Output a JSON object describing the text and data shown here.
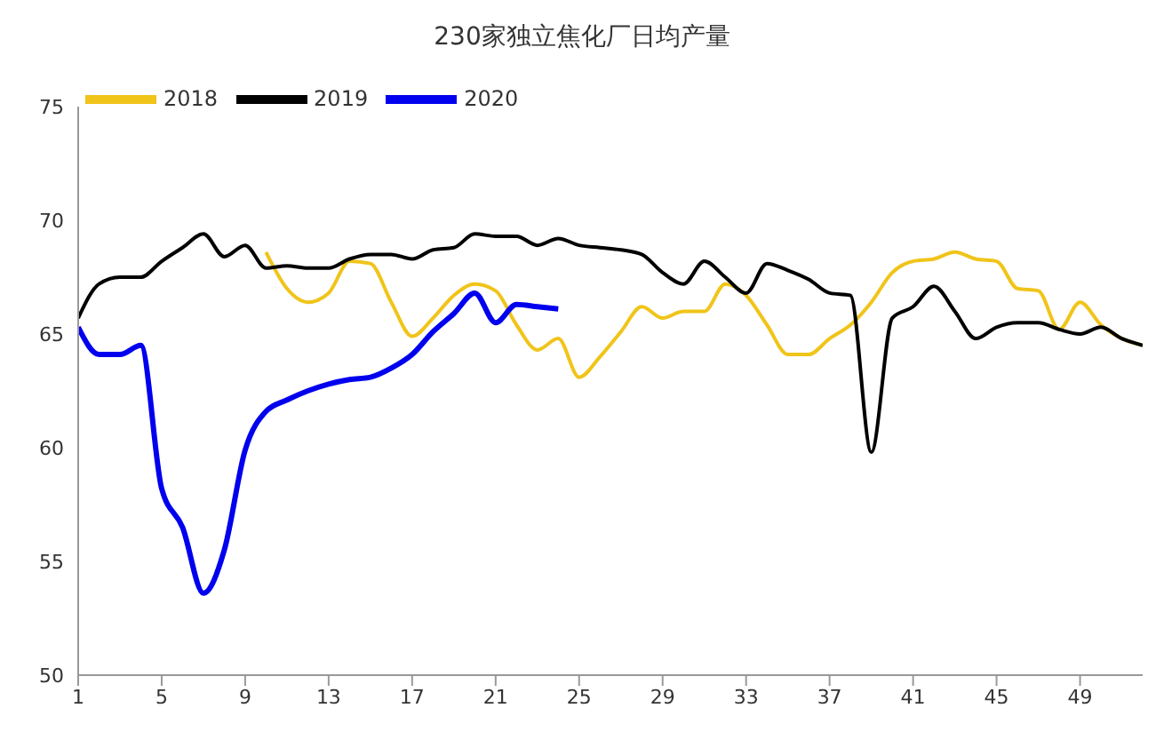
{
  "chart_data": {
    "type": "line",
    "title": "230家独立焦化厂日均产量",
    "x": [
      1,
      2,
      3,
      4,
      5,
      6,
      7,
      8,
      9,
      10,
      11,
      12,
      13,
      14,
      15,
      16,
      17,
      18,
      19,
      20,
      21,
      22,
      23,
      24,
      25,
      26,
      27,
      28,
      29,
      30,
      31,
      32,
      33,
      34,
      35,
      36,
      37,
      38,
      39,
      40,
      41,
      42,
      43,
      44,
      45,
      46,
      47,
      48,
      49,
      50,
      51,
      52
    ],
    "series": [
      {
        "name": "2018",
        "color": "#f0c419",
        "values": [
          null,
          null,
          null,
          null,
          null,
          null,
          null,
          null,
          null,
          68.6,
          67.0,
          66.4,
          66.8,
          68.2,
          68.1,
          66.4,
          64.9,
          65.7,
          66.7,
          67.2,
          66.9,
          65.4,
          64.3,
          64.8,
          63.1,
          64.0,
          65.1,
          66.2,
          65.7,
          66.0,
          66.0,
          67.2,
          66.7,
          65.4,
          64.1,
          64.1,
          64.8,
          65.4,
          66.4,
          67.7,
          68.2,
          68.3,
          68.6,
          68.3,
          68.2,
          67.0,
          66.9,
          65.2,
          66.4,
          65.4,
          64.8,
          64.5
        ]
      },
      {
        "name": "2019",
        "color": "#000000",
        "values": [
          65.7,
          67.2,
          67.5,
          67.5,
          68.2,
          68.8,
          69.4,
          68.4,
          68.9,
          67.9,
          68.0,
          67.9,
          67.9,
          68.3,
          68.5,
          68.5,
          68.3,
          68.7,
          68.8,
          69.4,
          69.3,
          69.3,
          68.9,
          69.2,
          68.9,
          68.8,
          68.7,
          68.5,
          67.7,
          67.2,
          68.2,
          67.5,
          66.8,
          68.1,
          67.8,
          67.4,
          66.8,
          66.7,
          59.8,
          65.7,
          66.2,
          67.1,
          66.0,
          64.8,
          65.3,
          65.5,
          65.5,
          65.2,
          65.0,
          65.3,
          64.8,
          64.5
        ]
      },
      {
        "name": "2020",
        "color": "#0000ee",
        "values": [
          65.3,
          64.1,
          64.1,
          64.5,
          58.2,
          56.5,
          53.6,
          55.5,
          59.9,
          61.6,
          62.1,
          62.5,
          62.8,
          63.0,
          63.1,
          63.5,
          64.1,
          65.1,
          65.9,
          66.8,
          65.5,
          66.3,
          66.2,
          66.1,
          null,
          null,
          null,
          null,
          null,
          null,
          null,
          null,
          null,
          null,
          null,
          null,
          null,
          null,
          null,
          null,
          null,
          null,
          null,
          null,
          null,
          null,
          null,
          null,
          null,
          null,
          null,
          null
        ]
      }
    ],
    "xlim": [
      1,
      52
    ],
    "xticks": [
      1,
      5,
      9,
      13,
      17,
      21,
      25,
      29,
      33,
      37,
      41,
      45,
      49
    ],
    "ylim": [
      50,
      75
    ],
    "yticks": [
      50,
      55,
      60,
      65,
      70,
      75
    ],
    "grid": false,
    "legend": "top left",
    "marker": "none",
    "line_style": "solid"
  }
}
